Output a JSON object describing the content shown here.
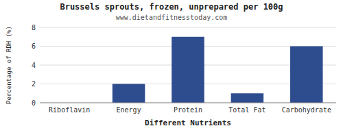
{
  "chart_data": {
    "type": "bar",
    "title": "Brussels sprouts, frozen, unprepared per 100g",
    "subtitle": "www.dietandfitnesstoday.com",
    "xlabel": "Different Nutrients",
    "ylabel": "Percentage of RDH (%)",
    "categories": [
      "Riboflavin",
      "Energy",
      "Protein",
      "Total Fat",
      "Carbohydrate"
    ],
    "values": [
      0,
      2,
      7,
      1,
      6
    ],
    "color": "#2e4d8e",
    "ylim": [
      0,
      8
    ],
    "yticks": [
      0,
      2,
      4,
      6,
      8
    ],
    "grid": true
  }
}
